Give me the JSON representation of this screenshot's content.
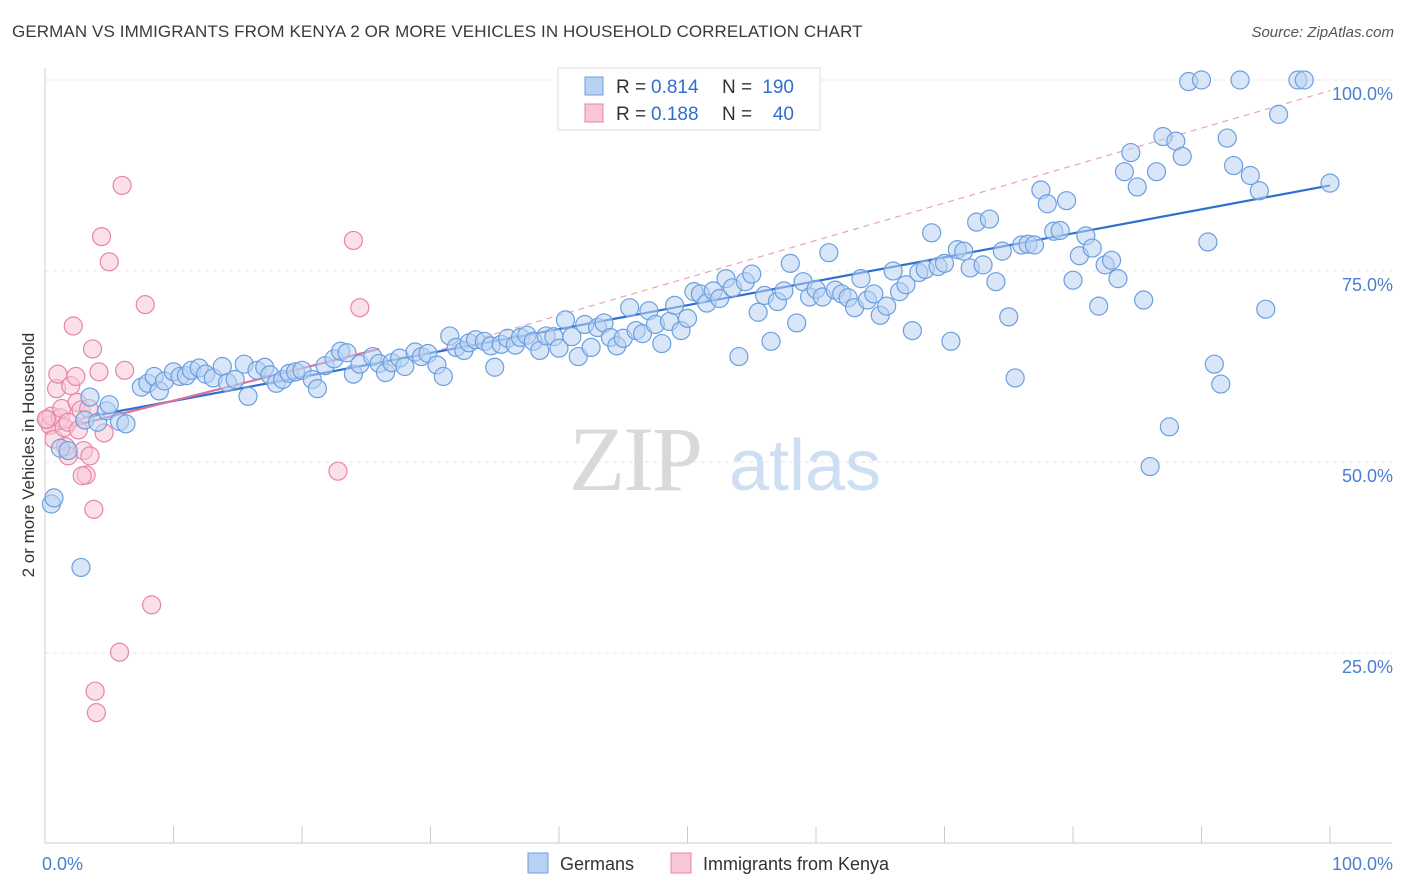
{
  "title": "GERMAN VS IMMIGRANTS FROM KENYA 2 OR MORE VEHICLES IN HOUSEHOLD CORRELATION CHART",
  "source": "Source: ZipAtlas.com",
  "watermark": {
    "zip": "ZIP",
    "atlas": "atlas"
  },
  "legend_top": [
    {
      "r_label": "R =",
      "r_value": "0.814",
      "n_label": "N =",
      "n_value": "190",
      "color": "#6a9fe0",
      "fill": "#b9d1f3"
    },
    {
      "r_label": "R =",
      "r_value": "0.188",
      "n_label": "N =",
      "n_value": "40",
      "color": "#e785a6",
      "fill": "#f8c6d6"
    }
  ],
  "chart_data": {
    "type": "scatter",
    "title": "GERMAN VS IMMIGRANTS FROM KENYA 2 OR MORE VEHICLES IN HOUSEHOLD CORRELATION CHART",
    "xlabel": "",
    "ylabel": "2 or more Vehicles in Household",
    "xlim": [
      0,
      100
    ],
    "ylim": [
      4,
      104
    ],
    "x_tick_labels": [
      {
        "value": 0,
        "label": "0.0%"
      },
      {
        "value": 100,
        "label": "100.0%"
      }
    ],
    "y_tick_labels": [
      {
        "value": 25,
        "label": "25.0%"
      },
      {
        "value": 50,
        "label": "50.0%"
      },
      {
        "value": 75,
        "label": "75.0%"
      },
      {
        "value": 100,
        "label": "100.0%"
      }
    ],
    "grid": true,
    "legend_position": "bottom-center",
    "series": [
      {
        "name": "Germans",
        "color": "#6a9fe0",
        "fill": "#b9d1f3",
        "trend": [
          [
            3,
            55.8
          ],
          [
            100,
            86.2
          ]
        ],
        "trend_color": "#2f6fd0",
        "dashed_extension": [
          [
            30,
            64.3
          ],
          [
            100,
            98.6
          ]
        ],
        "points": [
          [
            0.5,
            44.5
          ],
          [
            0.7,
            45.3
          ],
          [
            1.2,
            51.8
          ],
          [
            1.8,
            51.5
          ],
          [
            2.8,
            36.2
          ],
          [
            3.1,
            55.5
          ],
          [
            3.5,
            58.5
          ],
          [
            4.1,
            55.2
          ],
          [
            4.8,
            56.7
          ],
          [
            5.0,
            57.5
          ],
          [
            5.8,
            55.3
          ],
          [
            6.3,
            55.0
          ],
          [
            7.5,
            59.8
          ],
          [
            8.0,
            60.3
          ],
          [
            8.5,
            61.2
          ],
          [
            8.9,
            59.3
          ],
          [
            9.3,
            60.6
          ],
          [
            10.0,
            61.8
          ],
          [
            10.5,
            61.2
          ],
          [
            11.0,
            61.3
          ],
          [
            11.4,
            62.0
          ],
          [
            12.0,
            62.3
          ],
          [
            12.5,
            61.5
          ],
          [
            13.1,
            61.0
          ],
          [
            13.8,
            62.5
          ],
          [
            14.2,
            60.4
          ],
          [
            14.8,
            60.8
          ],
          [
            15.5,
            62.8
          ],
          [
            15.8,
            58.6
          ],
          [
            16.5,
            62.0
          ],
          [
            17.1,
            62.4
          ],
          [
            17.5,
            61.4
          ],
          [
            18.0,
            60.3
          ],
          [
            18.5,
            60.8
          ],
          [
            19.0,
            61.6
          ],
          [
            19.5,
            61.8
          ],
          [
            20.0,
            62.0
          ],
          [
            20.8,
            60.8
          ],
          [
            21.2,
            59.6
          ],
          [
            21.8,
            62.6
          ],
          [
            22.5,
            63.5
          ],
          [
            23.0,
            64.5
          ],
          [
            23.5,
            64.3
          ],
          [
            24.0,
            61.5
          ],
          [
            24.5,
            62.8
          ],
          [
            25.5,
            63.8
          ],
          [
            26.0,
            62.9
          ],
          [
            26.5,
            61.7
          ],
          [
            27.0,
            63.0
          ],
          [
            27.6,
            63.6
          ],
          [
            28.0,
            62.5
          ],
          [
            28.8,
            64.4
          ],
          [
            29.3,
            63.8
          ],
          [
            29.8,
            64.2
          ],
          [
            30.5,
            62.7
          ],
          [
            31.0,
            61.2
          ],
          [
            31.5,
            66.5
          ],
          [
            32.0,
            65.0
          ],
          [
            32.6,
            64.6
          ],
          [
            33.0,
            65.6
          ],
          [
            33.5,
            66.0
          ],
          [
            34.2,
            65.8
          ],
          [
            34.7,
            65.2
          ],
          [
            35.0,
            62.4
          ],
          [
            35.5,
            65.4
          ],
          [
            36.0,
            66.2
          ],
          [
            36.6,
            65.3
          ],
          [
            37.0,
            66.3
          ],
          [
            37.5,
            66.6
          ],
          [
            38.0,
            65.8
          ],
          [
            38.5,
            64.6
          ],
          [
            39.0,
            66.5
          ],
          [
            39.6,
            66.4
          ],
          [
            40.0,
            64.9
          ],
          [
            40.5,
            68.6
          ],
          [
            41.0,
            66.4
          ],
          [
            41.5,
            63.8
          ],
          [
            42.0,
            68.0
          ],
          [
            42.5,
            65.0
          ],
          [
            43.0,
            67.6
          ],
          [
            43.5,
            68.2
          ],
          [
            44.0,
            66.3
          ],
          [
            44.5,
            65.2
          ],
          [
            45.0,
            66.2
          ],
          [
            45.5,
            70.2
          ],
          [
            46.0,
            67.2
          ],
          [
            46.5,
            66.8
          ],
          [
            47.0,
            69.8
          ],
          [
            47.5,
            68.0
          ],
          [
            48.0,
            65.5
          ],
          [
            48.6,
            68.4
          ],
          [
            49.0,
            70.5
          ],
          [
            49.5,
            67.2
          ],
          [
            50.0,
            68.8
          ],
          [
            50.5,
            72.3
          ],
          [
            51.0,
            72.0
          ],
          [
            51.5,
            70.8
          ],
          [
            52.0,
            72.4
          ],
          [
            52.5,
            71.4
          ],
          [
            53.0,
            74.0
          ],
          [
            53.5,
            72.8
          ],
          [
            54.0,
            63.8
          ],
          [
            54.5,
            73.6
          ],
          [
            55.0,
            74.6
          ],
          [
            55.5,
            69.6
          ],
          [
            56.0,
            71.8
          ],
          [
            56.5,
            65.8
          ],
          [
            57.0,
            71.0
          ],
          [
            57.5,
            72.4
          ],
          [
            58.0,
            76.0
          ],
          [
            58.5,
            68.2
          ],
          [
            59.0,
            73.6
          ],
          [
            59.5,
            71.6
          ],
          [
            60.0,
            72.6
          ],
          [
            60.5,
            71.6
          ],
          [
            61.0,
            77.4
          ],
          [
            61.5,
            72.5
          ],
          [
            62.0,
            72.0
          ],
          [
            62.5,
            71.5
          ],
          [
            63.0,
            70.2
          ],
          [
            63.5,
            74.0
          ],
          [
            64.0,
            71.2
          ],
          [
            64.5,
            72.0
          ],
          [
            65.0,
            69.2
          ],
          [
            65.5,
            70.4
          ],
          [
            66.0,
            75.0
          ],
          [
            66.5,
            72.3
          ],
          [
            67.0,
            73.2
          ],
          [
            67.5,
            67.2
          ],
          [
            68.0,
            74.8
          ],
          [
            68.5,
            75.2
          ],
          [
            69.0,
            80.0
          ],
          [
            69.5,
            75.6
          ],
          [
            70.0,
            76.0
          ],
          [
            70.5,
            65.8
          ],
          [
            71.0,
            77.8
          ],
          [
            71.5,
            77.6
          ],
          [
            72.0,
            75.4
          ],
          [
            72.5,
            81.4
          ],
          [
            73.0,
            75.8
          ],
          [
            73.5,
            81.8
          ],
          [
            74.0,
            73.6
          ],
          [
            74.5,
            77.6
          ],
          [
            75.0,
            69.0
          ],
          [
            75.5,
            61.0
          ],
          [
            76.0,
            78.4
          ],
          [
            76.5,
            78.5
          ],
          [
            77.0,
            78.4
          ],
          [
            77.5,
            85.6
          ],
          [
            78.0,
            83.8
          ],
          [
            78.5,
            80.2
          ],
          [
            79.0,
            80.3
          ],
          [
            79.5,
            84.2
          ],
          [
            80.0,
            73.8
          ],
          [
            80.5,
            77.0
          ],
          [
            81.0,
            79.6
          ],
          [
            81.5,
            78.0
          ],
          [
            82.0,
            70.4
          ],
          [
            82.5,
            75.8
          ],
          [
            83.0,
            76.4
          ],
          [
            83.5,
            74.0
          ],
          [
            84.0,
            88.0
          ],
          [
            84.5,
            90.5
          ],
          [
            85.0,
            86.0
          ],
          [
            85.5,
            71.2
          ],
          [
            86.0,
            49.4
          ],
          [
            86.5,
            88.0
          ],
          [
            87.0,
            92.6
          ],
          [
            87.5,
            54.6
          ],
          [
            88.0,
            92.0
          ],
          [
            88.5,
            90.0
          ],
          [
            89.0,
            99.8
          ],
          [
            90.0,
            100.0
          ],
          [
            90.5,
            78.8
          ],
          [
            91.0,
            62.8
          ],
          [
            91.5,
            60.2
          ],
          [
            92.0,
            92.4
          ],
          [
            92.5,
            88.8
          ],
          [
            93.0,
            100.0
          ],
          [
            93.8,
            87.5
          ],
          [
            94.5,
            85.5
          ],
          [
            95.0,
            70.0
          ],
          [
            96.0,
            95.5
          ],
          [
            97.5,
            100.0
          ],
          [
            98.0,
            100.0
          ],
          [
            100.0,
            86.5
          ]
        ]
      },
      {
        "name": "Immigrants from Kenya",
        "color": "#e785a6",
        "fill": "#f8c6d6",
        "trend": [
          [
            0,
            53.8
          ],
          [
            26,
            64.8
          ]
        ],
        "trend_color": "#e0709a",
        "points": [
          [
            0.2,
            55.5
          ],
          [
            0.4,
            54.8
          ],
          [
            0.5,
            56.0
          ],
          [
            0.7,
            53.0
          ],
          [
            0.9,
            59.6
          ],
          [
            1.0,
            61.5
          ],
          [
            1.2,
            55.8
          ],
          [
            1.3,
            57.0
          ],
          [
            1.5,
            54.5
          ],
          [
            1.6,
            52.0
          ],
          [
            1.8,
            55.2
          ],
          [
            2.0,
            60.0
          ],
          [
            2.2,
            67.8
          ],
          [
            2.4,
            61.2
          ],
          [
            2.5,
            57.8
          ],
          [
            2.6,
            54.2
          ],
          [
            2.8,
            56.8
          ],
          [
            3.0,
            51.5
          ],
          [
            3.2,
            48.3
          ],
          [
            3.4,
            57.0
          ],
          [
            3.5,
            50.8
          ],
          [
            3.7,
            64.8
          ],
          [
            3.8,
            43.8
          ],
          [
            3.9,
            20.0
          ],
          [
            4.0,
            17.2
          ],
          [
            4.2,
            61.8
          ],
          [
            4.4,
            79.5
          ],
          [
            4.6,
            53.8
          ],
          [
            5.0,
            76.2
          ],
          [
            5.8,
            25.1
          ],
          [
            6.0,
            86.2
          ],
          [
            6.2,
            62.0
          ],
          [
            7.8,
            70.6
          ],
          [
            8.3,
            31.3
          ],
          [
            22.8,
            48.8
          ],
          [
            24.0,
            79.0
          ],
          [
            24.5,
            70.2
          ],
          [
            1.8,
            50.8
          ],
          [
            2.9,
            48.2
          ],
          [
            0.1,
            55.6
          ]
        ]
      }
    ]
  }
}
